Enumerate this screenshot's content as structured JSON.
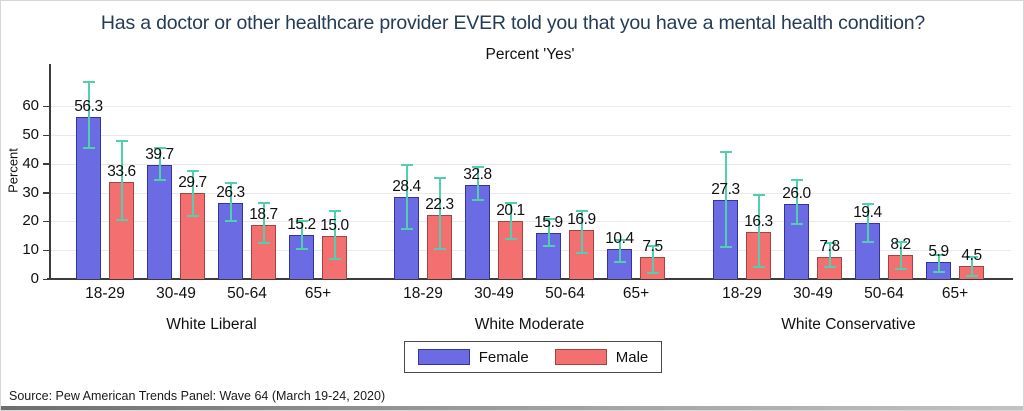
{
  "chart_data": {
    "type": "bar",
    "title": "Has a doctor or other healthcare provider EVER told you that you have a mental health condition?",
    "subtitle": "Percent 'Yes'",
    "ylabel": "Percent",
    "yticks": [
      0,
      10,
      20,
      30,
      40,
      50,
      60
    ],
    "ylim": [
      0,
      74
    ],
    "grid": true,
    "legend_position": "bottom-center",
    "categories": [
      "18-29",
      "30-49",
      "50-64",
      "65+"
    ],
    "legend": [
      {
        "label": "Female"
      },
      {
        "label": "Male"
      }
    ],
    "colors": {
      "female_fill": "#6b6be4",
      "female_border": "#3434a0",
      "male_fill": "#f47070",
      "male_border": "#a04444",
      "error_bar": "#52cfae",
      "title": "#243c55",
      "grid": "#e9e9ec",
      "axis": "#3c3c3c"
    },
    "groups": [
      {
        "label": "White Liberal",
        "series": [
          {
            "name": "Female",
            "values": [
              56.3,
              39.7,
              26.3,
              15.2
            ],
            "ci": [
              [
                45.5,
                68.5
              ],
              [
                34.5,
                45.5
              ],
              [
                20.0,
                33.5
              ],
              [
                10.5,
                20.0
              ]
            ]
          },
          {
            "name": "Male",
            "values": [
              33.6,
              29.7,
              18.7,
              15.0
            ],
            "ci": [
              [
                20.5,
                48.0
              ],
              [
                22.0,
                37.5
              ],
              [
                12.5,
                26.5
              ],
              [
                7.0,
                23.5
              ]
            ]
          }
        ]
      },
      {
        "label": "White Moderate",
        "series": [
          {
            "name": "Female",
            "values": [
              28.4,
              32.8,
              15.9,
              10.4
            ],
            "ci": [
              [
                17.5,
                39.5
              ],
              [
                27.5,
                39.0
              ],
              [
                11.5,
                21.0
              ],
              [
                6.0,
                13.5
              ]
            ]
          },
          {
            "name": "Male",
            "values": [
              22.3,
              20.1,
              16.9,
              7.5
            ],
            "ci": [
              [
                10.5,
                35.0
              ],
              [
                14.0,
                26.5
              ],
              [
                9.0,
                23.5
              ],
              [
                2.0,
                11.5
              ]
            ]
          }
        ]
      },
      {
        "label": "White Conservative",
        "series": [
          {
            "name": "Female",
            "values": [
              27.3,
              26.0,
              19.4,
              5.9
            ],
            "ci": [
              [
                11.0,
                44.0
              ],
              [
                19.0,
                34.5
              ],
              [
                13.0,
                26.0
              ],
              [
                2.5,
                8.5
              ]
            ]
          },
          {
            "name": "Male",
            "values": [
              16.3,
              7.8,
              8.2,
              4.5
            ],
            "ci": [
              [
                4.0,
                29.0
              ],
              [
                4.0,
                12.5
              ],
              [
                3.5,
                13.0
              ],
              [
                1.0,
                7.5
              ]
            ]
          }
        ]
      }
    ],
    "source": "Source: Pew American Trends Panel: Wave 64 (March 19-24, 2020)"
  }
}
